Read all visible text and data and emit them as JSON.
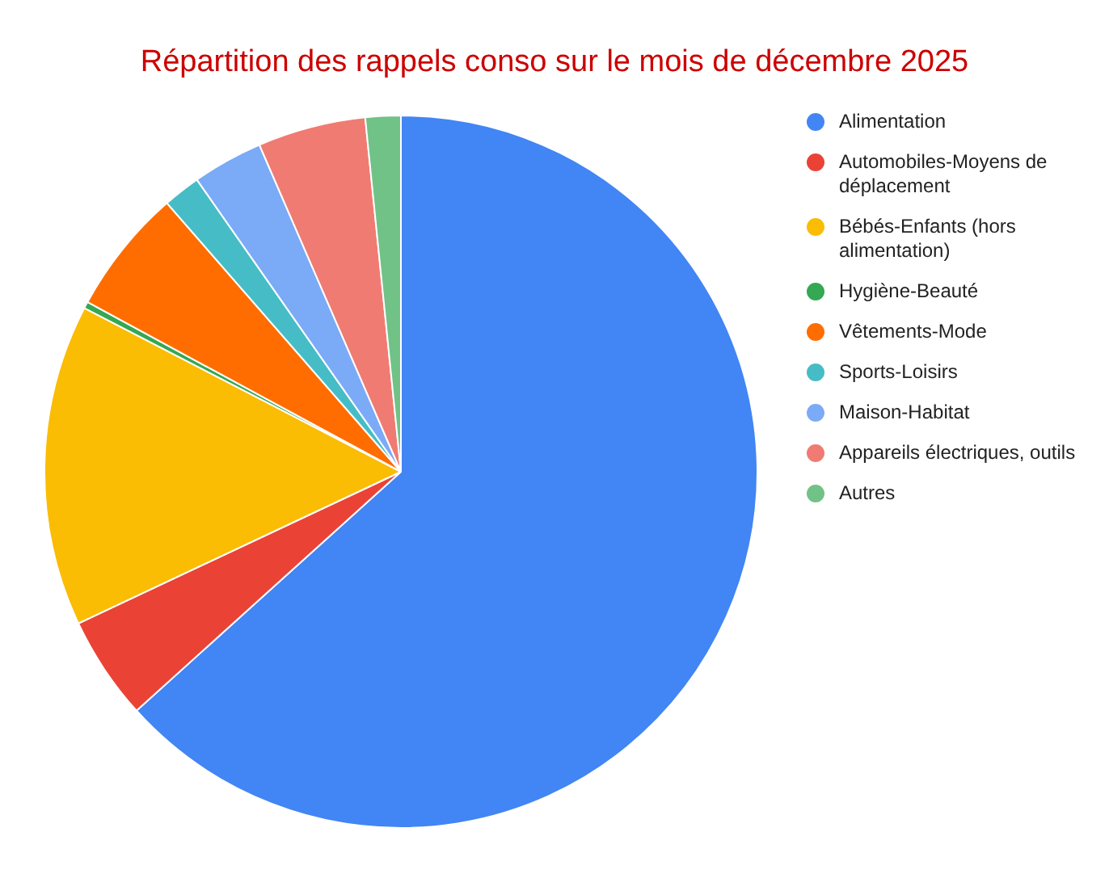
{
  "chart_data": {
    "type": "pie",
    "title": "Répartition des rappels conso sur le mois de décembre 2025",
    "categories": [
      "Alimentation",
      "Automobiles-Moyens de déplacement",
      "Bébés-Enfants (hors alimentation)",
      "Hygiène-Beauté",
      "Vêtements-Mode",
      "Sports-Loisirs",
      "Maison-Habitat",
      "Appareils électriques, outils",
      "Autres"
    ],
    "values": [
      63.3,
      4.7,
      14.6,
      0.3,
      5.7,
      1.7,
      3.2,
      4.9,
      1.6
    ],
    "colors": [
      "#4285f4",
      "#ea4335",
      "#fbbc04",
      "#34a853",
      "#ff6d01",
      "#46bdc6",
      "#7baaf7",
      "#f07b72",
      "#71c287"
    ],
    "legend": "right"
  }
}
